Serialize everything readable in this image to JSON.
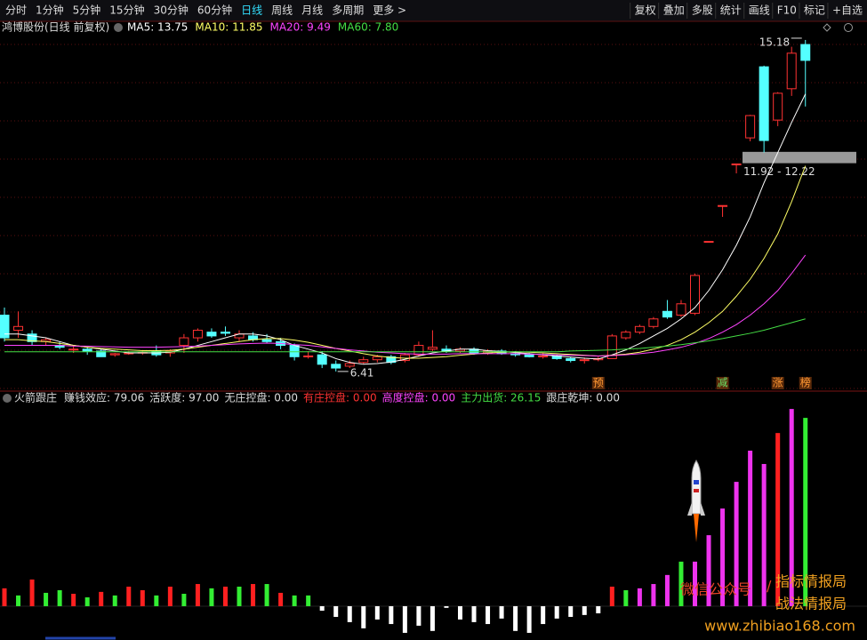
{
  "toolbar": {
    "left": [
      {
        "label": "分时"
      },
      {
        "label": "1分钟"
      },
      {
        "label": "5分钟"
      },
      {
        "label": "15分钟"
      },
      {
        "label": "30分钟"
      },
      {
        "label": "60分钟"
      },
      {
        "label": "日线",
        "active": true
      },
      {
        "label": "周线"
      },
      {
        "label": "月线"
      },
      {
        "label": "多周期"
      },
      {
        "label": "更多 >"
      }
    ],
    "right": [
      {
        "label": "复权"
      },
      {
        "label": "叠加"
      },
      {
        "label": "多股"
      },
      {
        "label": "统计"
      },
      {
        "label": "画线"
      },
      {
        "label": "F10"
      },
      {
        "label": "标记"
      },
      {
        "label": "+自选"
      }
    ]
  },
  "chart_data": [
    {
      "type": "candlestick",
      "title": "鸿博股份(日线 前复权)",
      "ylim": [
        5.89,
        15.72
      ],
      "grid": true,
      "up_color": "#ff3232",
      "down_color": "#54ffff",
      "open": [
        7.9,
        7.5,
        7.4,
        7.2,
        7.1,
        7.0,
        7.0,
        6.95,
        6.85,
        6.88,
        6.9,
        6.95,
        6.9,
        7.1,
        7.3,
        7.45,
        7.45,
        7.3,
        7.35,
        7.25,
        7.2,
        7.1,
        6.8,
        6.85,
        6.6,
        6.55,
        6.65,
        6.72,
        6.8,
        6.7,
        6.85,
        7.0,
        7.0,
        6.95,
        7.0,
        6.9,
        6.95,
        6.88,
        6.85,
        6.8,
        6.82,
        6.75,
        6.7,
        6.72,
        6.75,
        7.3,
        7.45,
        7.6,
        8.0,
        7.9,
        7.95,
        9.85,
        10.8,
        11.9,
        12.59,
        14.47,
        13.06,
        13.89,
        15.06
      ],
      "high": [
        8.1,
        8.0,
        7.5,
        7.3,
        7.2,
        7.1,
        7.05,
        7.0,
        6.9,
        6.95,
        6.95,
        7.1,
        7.0,
        7.4,
        7.55,
        7.55,
        7.6,
        7.5,
        7.45,
        7.4,
        7.3,
        7.15,
        6.95,
        6.95,
        6.7,
        6.7,
        6.8,
        6.85,
        6.85,
        6.9,
        7.2,
        7.5,
        7.1,
        7.05,
        7.05,
        7.0,
        7.0,
        6.95,
        6.9,
        6.9,
        6.85,
        6.8,
        6.78,
        6.8,
        7.4,
        7.5,
        7.65,
        7.85,
        8.3,
        8.3,
        9.0,
        9.85,
        10.8,
        11.9,
        13.2,
        14.5,
        13.8,
        15.0,
        15.18
      ],
      "low": [
        7.2,
        7.3,
        7.1,
        7.1,
        7.0,
        6.9,
        6.85,
        6.8,
        6.8,
        6.85,
        6.85,
        6.8,
        6.8,
        6.9,
        7.2,
        7.3,
        7.35,
        7.2,
        7.2,
        7.15,
        7.0,
        6.7,
        6.75,
        6.5,
        6.41,
        6.5,
        6.6,
        6.65,
        6.6,
        6.65,
        6.8,
        6.95,
        6.9,
        6.9,
        6.85,
        6.85,
        6.85,
        6.8,
        6.78,
        6.75,
        6.72,
        6.65,
        6.62,
        6.68,
        6.75,
        7.25,
        7.4,
        7.55,
        7.8,
        7.85,
        7.9,
        9.85,
        10.5,
        11.65,
        12.5,
        12.2,
        12.9,
        13.7,
        13.42
      ],
      "close": [
        7.3,
        7.6,
        7.2,
        7.25,
        7.05,
        7.0,
        6.95,
        6.8,
        6.88,
        6.9,
        6.92,
        6.85,
        6.95,
        7.3,
        7.5,
        7.35,
        7.42,
        7.4,
        7.25,
        7.2,
        7.1,
        6.8,
        6.82,
        6.6,
        6.5,
        6.62,
        6.72,
        6.8,
        6.65,
        6.85,
        7.1,
        7.05,
        6.95,
        7.0,
        6.9,
        6.95,
        6.88,
        6.85,
        6.8,
        6.82,
        6.75,
        6.7,
        6.72,
        6.75,
        7.35,
        7.45,
        7.6,
        7.8,
        7.85,
        8.2,
        8.95,
        9.85,
        10.8,
        11.9,
        13.18,
        12.52,
        13.77,
        14.83,
        14.64
      ],
      "series": [
        {
          "name": "MA5: 13.75",
          "color": "#ffffff",
          "values": [
            7.4,
            7.4,
            7.35,
            7.3,
            7.2,
            7.1,
            7.05,
            7.0,
            6.95,
            6.9,
            6.9,
            6.9,
            6.92,
            7.0,
            7.1,
            7.2,
            7.3,
            7.4,
            7.4,
            7.35,
            7.25,
            7.1,
            7.0,
            6.9,
            6.75,
            6.65,
            6.6,
            6.62,
            6.66,
            6.73,
            6.82,
            6.9,
            6.95,
            7.0,
            7.0,
            6.96,
            6.94,
            6.91,
            6.88,
            6.85,
            6.82,
            6.79,
            6.76,
            6.74,
            6.85,
            6.98,
            7.15,
            7.35,
            7.55,
            7.8,
            8.1,
            8.55,
            9.1,
            9.75,
            10.5,
            11.4,
            12.2,
            13.0,
            13.75
          ]
        },
        {
          "name": "MA10: 11.85",
          "color": "#ffff66",
          "values": [
            7.25,
            7.25,
            7.22,
            7.2,
            7.15,
            7.1,
            7.05,
            7.02,
            7.0,
            6.98,
            6.96,
            6.96,
            6.97,
            7.0,
            7.05,
            7.1,
            7.15,
            7.2,
            7.25,
            7.28,
            7.28,
            7.24,
            7.18,
            7.1,
            7.02,
            6.95,
            6.88,
            6.82,
            6.78,
            6.76,
            6.76,
            6.78,
            6.8,
            6.84,
            6.87,
            6.9,
            6.92,
            6.93,
            6.92,
            6.9,
            6.88,
            6.86,
            6.84,
            6.82,
            6.84,
            6.87,
            6.92,
            7.0,
            7.1,
            7.25,
            7.45,
            7.7,
            8.0,
            8.4,
            8.85,
            9.4,
            10.05,
            10.9,
            11.85
          ]
        },
        {
          "name": "MA20: 9.49",
          "color": "#ff44ff",
          "values": [
            7.1,
            7.1,
            7.1,
            7.1,
            7.1,
            7.08,
            7.08,
            7.07,
            7.06,
            7.05,
            7.05,
            7.05,
            7.06,
            7.07,
            7.08,
            7.1,
            7.12,
            7.14,
            7.15,
            7.16,
            7.15,
            7.12,
            7.1,
            7.06,
            7.02,
            6.98,
            6.95,
            6.92,
            6.9,
            6.88,
            6.87,
            6.87,
            6.87,
            6.88,
            6.88,
            6.88,
            6.88,
            6.88,
            6.87,
            6.86,
            6.85,
            6.84,
            6.83,
            6.82,
            6.83,
            6.85,
            6.88,
            6.92,
            6.98,
            7.05,
            7.15,
            7.28,
            7.45,
            7.65,
            7.9,
            8.2,
            8.55,
            9.0,
            9.49
          ]
        },
        {
          "name": "MA60: 7.80",
          "color": "#44dd44",
          "values": [
            6.93,
            6.93,
            6.93,
            6.93,
            6.93,
            6.93,
            6.93,
            6.93,
            6.93,
            6.93,
            6.93,
            6.93,
            6.93,
            6.93,
            6.93,
            6.93,
            6.93,
            6.93,
            6.93,
            6.93,
            6.93,
            6.93,
            6.93,
            6.93,
            6.93,
            6.93,
            6.93,
            6.93,
            6.93,
            6.93,
            6.93,
            6.93,
            6.93,
            6.93,
            6.93,
            6.93,
            6.93,
            6.93,
            6.93,
            6.93,
            6.93,
            6.95,
            6.96,
            6.97,
            6.98,
            7.0,
            7.02,
            7.05,
            7.08,
            7.12,
            7.17,
            7.22,
            7.28,
            7.35,
            7.42,
            7.5,
            7.6,
            7.7,
            7.8
          ]
        }
      ],
      "high_label": "15.18",
      "low_label": "6.41",
      "band": {
        "label": "11.92 - 12.22",
        "low": 11.92,
        "high": 12.22
      },
      "signals": [
        null,
        null,
        null,
        null,
        null,
        null,
        null,
        null,
        null,
        null,
        null,
        null,
        null,
        null,
        null,
        null,
        null,
        null,
        null,
        null,
        null,
        null,
        null,
        null,
        null,
        null,
        null,
        null,
        null,
        null,
        null,
        null,
        null,
        null,
        null,
        null,
        null,
        null,
        null,
        null,
        null,
        null,
        null,
        "预",
        null,
        null,
        null,
        null,
        null,
        null,
        null,
        null,
        "减",
        null,
        null,
        null,
        "涨",
        null,
        "榜"
      ]
    },
    {
      "type": "bar",
      "title": "火箭跟庄",
      "items": [
        {
          "text": "赚钱效应: 79.06",
          "color": "#dddddd"
        },
        {
          "text": "活跃度: 97.00",
          "color": "#dddddd"
        },
        {
          "text": "无庄控盘: 0.00",
          "color": "#dddddd"
        },
        {
          "text": "有庄控盘: 0.00",
          "color": "#ff3232"
        },
        {
          "text": "高度控盘: 0.00",
          "color": "#ff44ff"
        },
        {
          "text": "主力出货: 26.15",
          "color": "#44dd44"
        },
        {
          "text": "跟庄乾坤: 0.00",
          "color": "#dddddd"
        }
      ],
      "ylim": [
        -14.2,
        84.7
      ],
      "values": [
        7.5,
        4.5,
        11.2,
        5.6,
        6.7,
        5.2,
        3.7,
        6.0,
        4.5,
        8.2,
        6.7,
        4.5,
        8.2,
        5.2,
        9.3,
        7.5,
        8.2,
        8.2,
        9.3,
        9.3,
        5.6,
        4.5,
        4.5,
        -1.9,
        -4.5,
        -6.7,
        -9.3,
        -5.6,
        -7.5,
        -11.2,
        -8.2,
        -10.4,
        -0.7,
        -5.6,
        -6.7,
        -7.5,
        -5.2,
        -10.4,
        -11.2,
        -7.5,
        -5.2,
        -4.5,
        -3.7,
        -3.0,
        8.2,
        6.7,
        7.5,
        9.3,
        13.1,
        18.7,
        18.7,
        29.8,
        41.0,
        52.2,
        65.3,
        59.7,
        72.7,
        82.8,
        79.06
      ],
      "colors": [
        "#ff2020",
        "#33ee33",
        "#ff2020",
        "#33ee33",
        "#33ee33",
        "#ff2020",
        "#33ee33",
        "#ff2020",
        "#33ee33",
        "#ff2020",
        "#ff2020",
        "#33ee33",
        "#ff2020",
        "#33ee33",
        "#ff2020",
        "#33ee33",
        "#ff2020",
        "#33ee33",
        "#ff2020",
        "#33ee33",
        "#ff2020",
        "#33ee33",
        "#33ee33",
        "#ffffff",
        "#ffffff",
        "#ffffff",
        "#ffffff",
        "#ffffff",
        "#ffffff",
        "#ffffff",
        "#ffffff",
        "#ffffff",
        "#ffffff",
        "#ffffff",
        "#ffffff",
        "#ffffff",
        "#ffffff",
        "#ffffff",
        "#ffffff",
        "#ffffff",
        "#ffffff",
        "#ffffff",
        "#ffffff",
        "#ffffff",
        "#ff2020",
        "#33ee33",
        "#ee33ee",
        "#ee33ee",
        "#ee33ee",
        "#33ee33",
        "#ee33ee",
        "#ee33ee",
        "#ee33ee",
        "#ee33ee",
        "#ee33ee",
        "#ee33ee",
        "#ff2020",
        "#ee33ee",
        "#33ee33"
      ]
    }
  ],
  "watermark": [
    {
      "text": "微信公众号",
      "color": "#e8442a"
    },
    {
      "text": "/",
      "color": "#e8442a"
    },
    {
      "text": "指标情报局",
      "color": "#f0a020"
    },
    {
      "text": "战法情报局",
      "color": "#f0a020"
    },
    {
      "text": "www.zhibiao168.com",
      "color": "#f0a020"
    }
  ]
}
